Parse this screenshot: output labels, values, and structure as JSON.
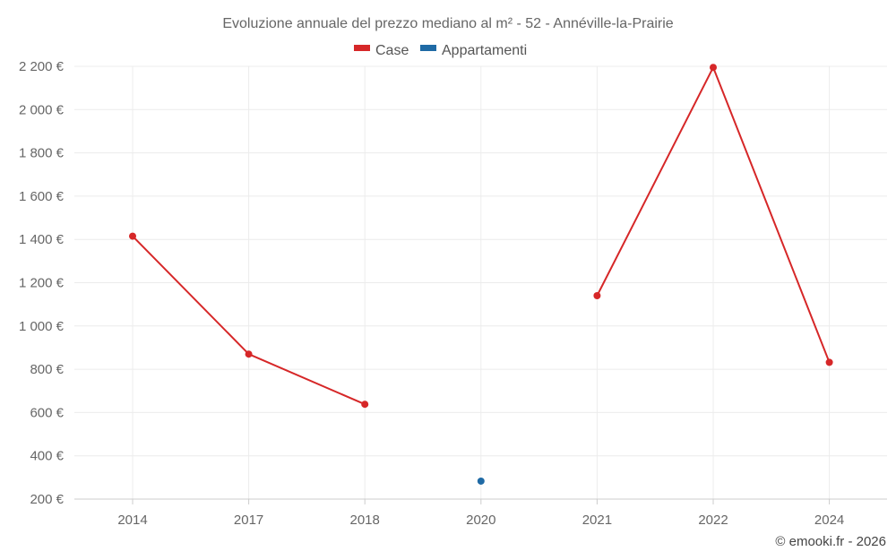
{
  "chart_data": {
    "type": "line",
    "title": "Evoluzione annuale del prezzo mediano al m² - 52 - Annéville-la-Prairie",
    "categories": [
      "2014",
      "2017",
      "2018",
      "2020",
      "2021",
      "2022",
      "2024"
    ],
    "series": [
      {
        "name": "Case",
        "color": "#d62728",
        "values": [
          1415,
          870,
          638,
          null,
          1140,
          2195,
          832
        ]
      },
      {
        "name": "Appartamenti",
        "color": "#1f6aa5",
        "values": [
          null,
          null,
          null,
          283,
          null,
          null,
          null
        ]
      }
    ],
    "ylim": [
      200,
      2200
    ],
    "yticks": [
      200,
      400,
      600,
      800,
      1000,
      1200,
      1400,
      1600,
      1800,
      2000,
      2200
    ],
    "ytick_labels": [
      "200 €",
      "400 €",
      "600 €",
      "800 €",
      "1 000 €",
      "1 200 €",
      "1 400 €",
      "1 600 €",
      "1 800 €",
      "2 000 €",
      "2 200 €"
    ],
    "grid": true,
    "legend_position": "top-center",
    "credit": "© emooki.fr - 2026"
  }
}
